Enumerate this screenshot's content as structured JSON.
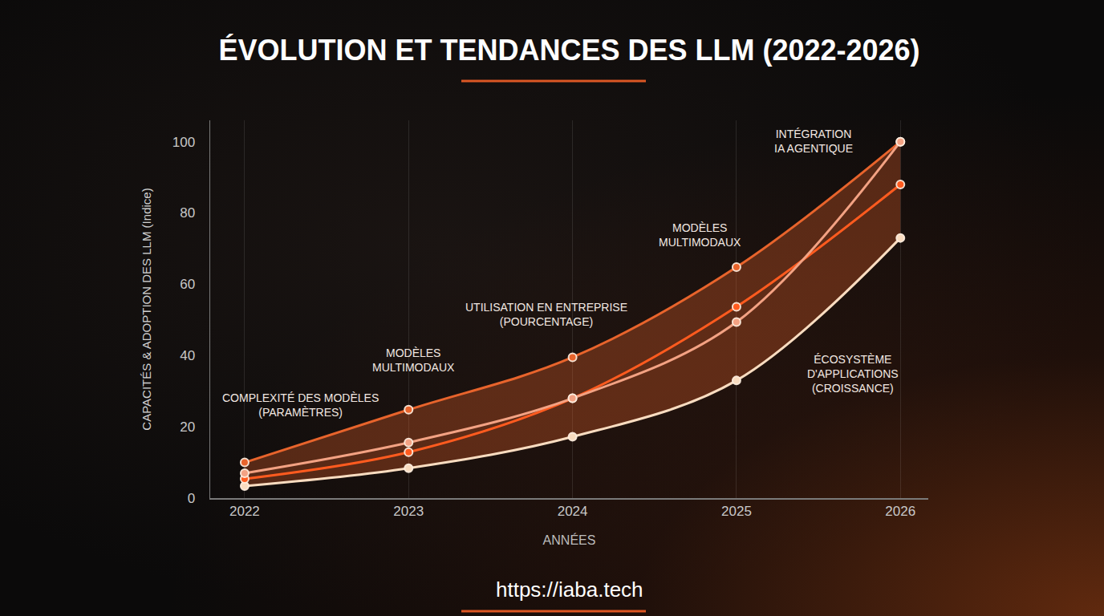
{
  "chart_data": {
    "type": "line",
    "title": "ÉVOLUTION ET TENDANCES DES LLM (2022-2026)",
    "x_label": "ANNÉES",
    "y_label": "CAPACITÉS & ADOPTION DES LLM (Indice)",
    "categories": [
      "2022",
      "2023",
      "2024",
      "2025",
      "2026"
    ],
    "ylim": [
      0,
      106
    ],
    "yticks": [
      0,
      20,
      40,
      60,
      80,
      100
    ],
    "grid": true,
    "line_style": "smooth",
    "marker": "circle",
    "series": [
      {
        "color": "#e8642c",
        "values": [
          10,
          24.8,
          39.5,
          64.8,
          100
        ]
      },
      {
        "color": "#ff5b1f",
        "values": [
          5.4,
          12.9,
          28,
          53.7,
          88
        ]
      },
      {
        "color": "#f3a283",
        "values": [
          7,
          15.6,
          28,
          49.4,
          100
        ]
      },
      {
        "color": "#f9dcc0",
        "values": [
          3.4,
          8.4,
          17.2,
          33,
          73
        ]
      }
    ],
    "annotations": [
      {
        "lines": [
          "COMPLEXITÉ DES MODÈLES",
          "(PARAMÈTRES)"
        ],
        "x": 0.34,
        "y": 26
      },
      {
        "lines": [
          "MODÈLES",
          "MULTIMODAUX"
        ],
        "x": 1.03,
        "y": 38.6
      },
      {
        "lines": [
          "UTILISATION EN ENTREPRISE",
          "(POURCENTAGE)"
        ],
        "x": 1.84,
        "y": 51.5
      },
      {
        "lines": [
          "MODÈLES",
          "MULTIMODAUX"
        ],
        "x": 2.78,
        "y": 73.8
      },
      {
        "lines": [
          "INTÉGRATION",
          "IA AGENTIQUE"
        ],
        "x": 3.47,
        "y": 100.2
      },
      {
        "lines": [
          "ÉCOSYSTÈME",
          "D'APPLICATIONS",
          "(CROISSANCE)"
        ],
        "x": 3.71,
        "y": 34.8
      }
    ],
    "footer": "https://iaba.tech"
  }
}
